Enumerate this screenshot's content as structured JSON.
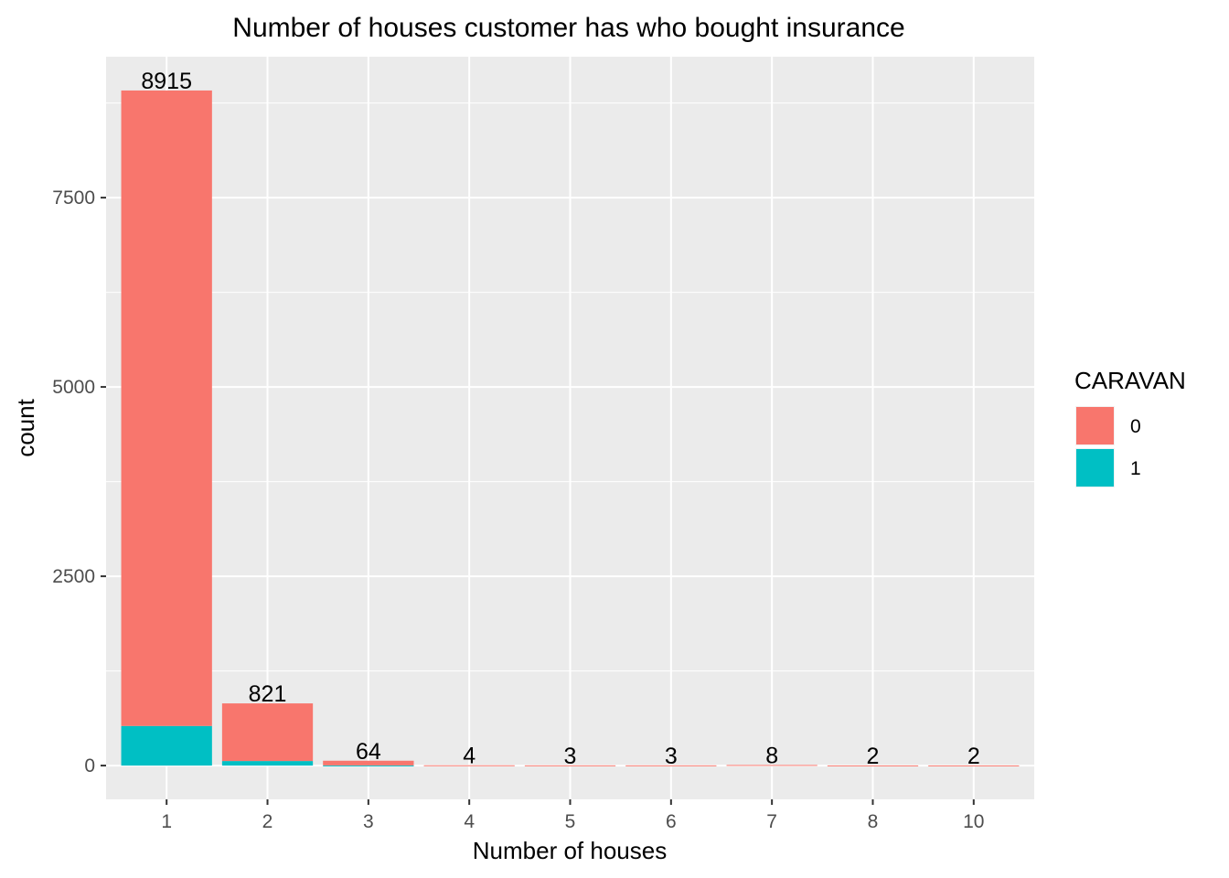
{
  "chart_data": {
    "type": "bar",
    "stacked": true,
    "title": "Number of houses customer has who bought insurance",
    "xlabel": "Number of houses",
    "ylabel": "count",
    "categories": [
      "1",
      "2",
      "3",
      "4",
      "5",
      "6",
      "7",
      "8",
      "10"
    ],
    "series": [
      {
        "name": "0",
        "color": "#F8766D",
        "values": [
          8392,
          761,
          62,
          4,
          3,
          3,
          8,
          2,
          2
        ]
      },
      {
        "name": "1",
        "color": "#00BFC4",
        "values": [
          523,
          60,
          2,
          0,
          0,
          0,
          0,
          0,
          0
        ]
      }
    ],
    "totals": [
      8915,
      821,
      64,
      4,
      3,
      3,
      8,
      2,
      2
    ],
    "ylim": [
      -446,
      9361
    ],
    "yticks": [
      0,
      2500,
      5000,
      7500
    ],
    "y_tick_labels": [
      "0",
      "2500",
      "5000",
      "7500"
    ],
    "legend": {
      "title": "CARAVAN",
      "position": "right",
      "entries": [
        "0",
        "1"
      ]
    },
    "grid": true,
    "panel_background": "#EBEBEB",
    "grid_color": "#FFFFFF"
  }
}
